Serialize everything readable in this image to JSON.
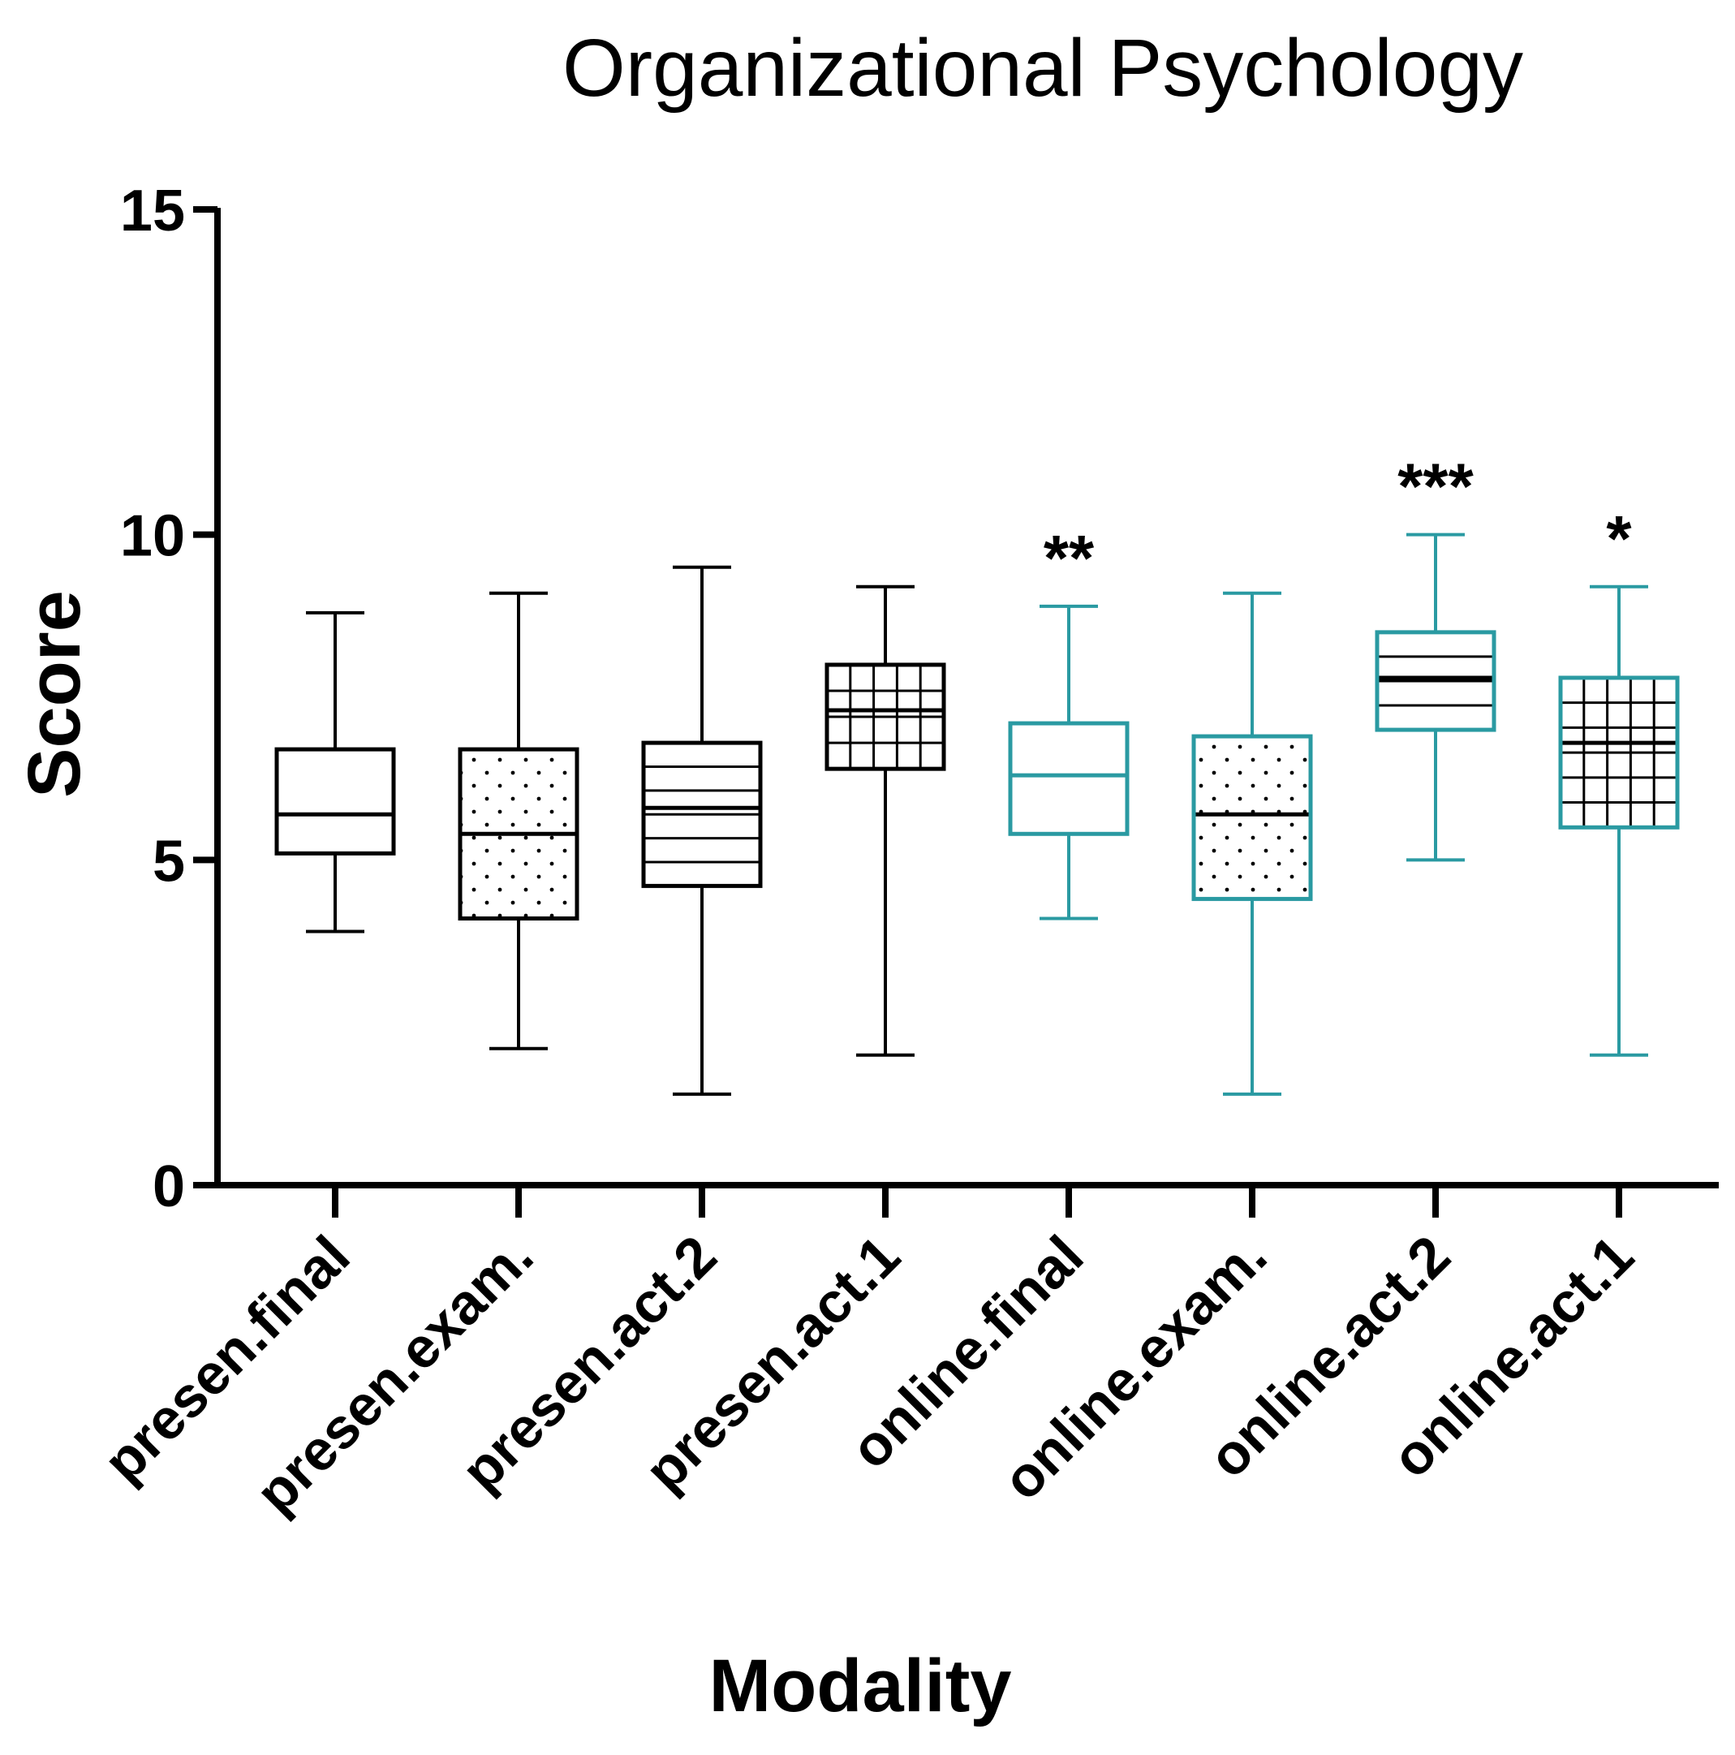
{
  "chart_data": {
    "type": "boxplot",
    "title": "Organizational Psychology",
    "xlabel": "Modality",
    "ylabel": "Score",
    "ylim": [
      0,
      15
    ],
    "yticks": [
      "0",
      "5",
      "10",
      "15"
    ],
    "colors": {
      "presen": "#000000",
      "online": "#2a9aa2"
    },
    "boxes": [
      {
        "label": "presen.final",
        "group": "presen",
        "pattern": "none",
        "min": 3.9,
        "q1": 5.1,
        "median": 5.7,
        "q3": 6.7,
        "max": 8.8,
        "sig": ""
      },
      {
        "label": "presen.exam.",
        "group": "presen",
        "pattern": "dots",
        "min": 2.1,
        "q1": 4.1,
        "median": 5.4,
        "q3": 6.7,
        "max": 9.1,
        "sig": ""
      },
      {
        "label": "presen.act.2",
        "group": "presen",
        "pattern": "hlines",
        "min": 1.4,
        "q1": 4.6,
        "median": 5.8,
        "q3": 6.8,
        "max": 9.5,
        "sig": ""
      },
      {
        "label": "presen.act.1",
        "group": "presen",
        "pattern": "grid",
        "min": 2.0,
        "q1": 6.4,
        "median": 7.3,
        "q3": 8.0,
        "max": 9.2,
        "sig": ""
      },
      {
        "label": "online.final",
        "group": "online",
        "pattern": "none",
        "min": 4.1,
        "q1": 5.4,
        "median": 6.3,
        "q3": 7.1,
        "max": 8.9,
        "sig": "**"
      },
      {
        "label": "online.exam.",
        "group": "online",
        "pattern": "dots",
        "min": 1.4,
        "q1": 4.4,
        "median": 5.7,
        "q3": 6.9,
        "max": 9.1,
        "sig": ""
      },
      {
        "label": "online.act.2",
        "group": "online",
        "pattern": "hlines",
        "min": 5.0,
        "q1": 7.0,
        "median": 7.8,
        "q3": 8.5,
        "max": 10.0,
        "sig": "***"
      },
      {
        "label": "online.act.1",
        "group": "online",
        "pattern": "grid",
        "min": 2.0,
        "q1": 5.5,
        "median": 6.8,
        "q3": 7.8,
        "max": 9.2,
        "sig": "*"
      }
    ]
  }
}
